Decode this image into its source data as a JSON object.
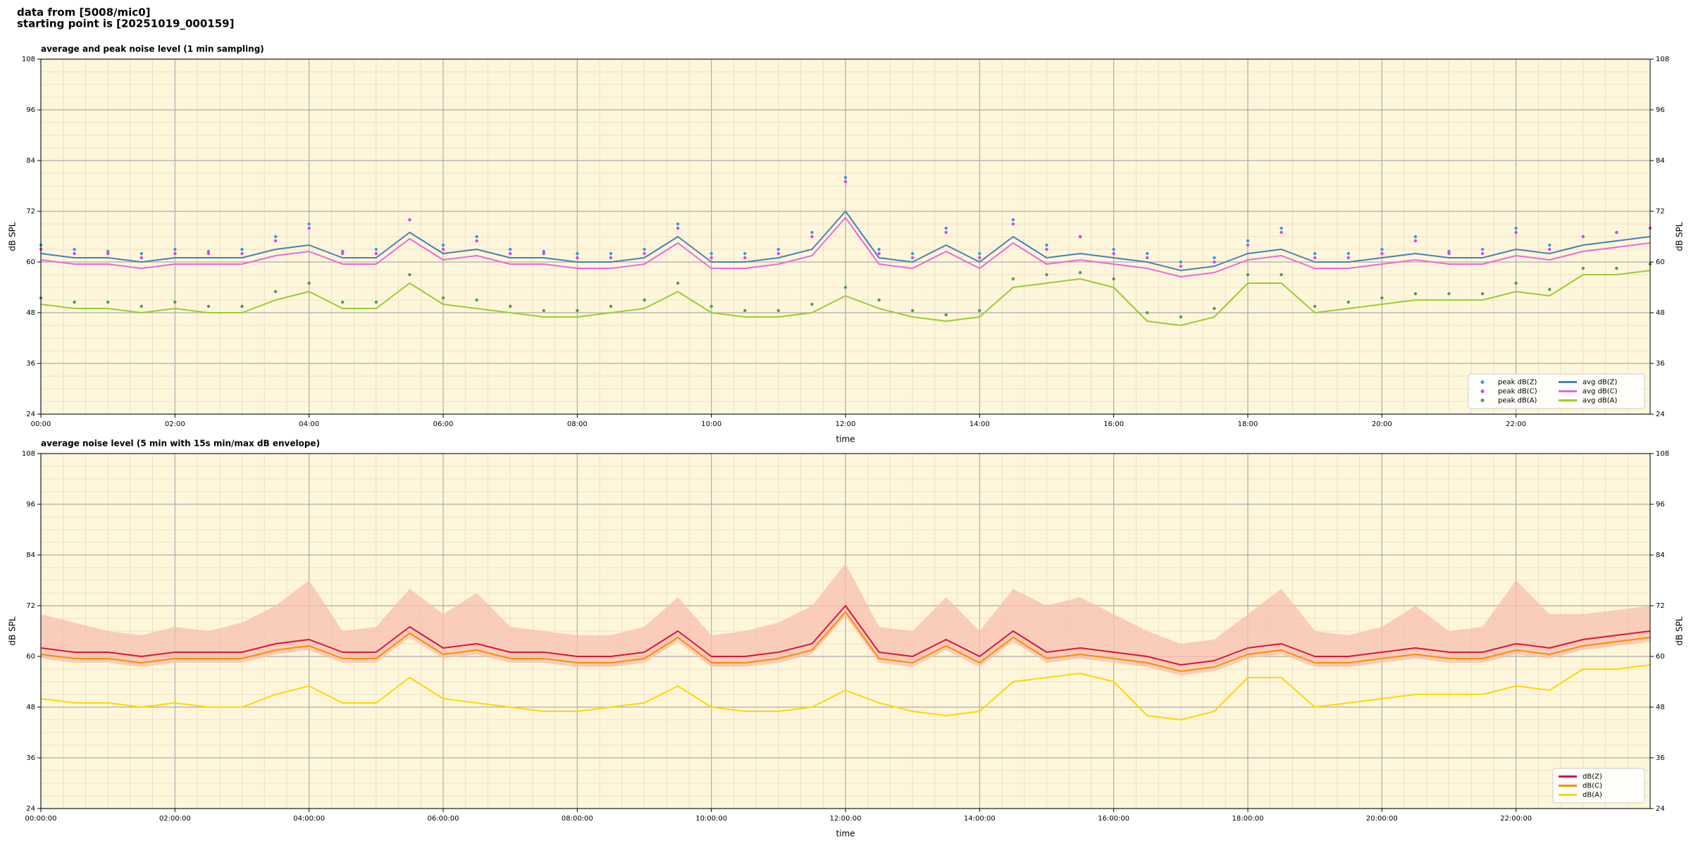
{
  "header": {
    "source": "data from [5008/mic0]",
    "start": "starting point is [20251019_000159]"
  },
  "chart_data": [
    {
      "type": "line",
      "title": "average and peak noise level (1 min sampling)",
      "xlabel": "time",
      "ylabel": "dB SPL",
      "x": [
        0,
        0.5,
        1,
        1.5,
        2,
        2.5,
        3,
        3.5,
        4,
        4.5,
        5,
        5.5,
        6,
        6.5,
        7,
        7.5,
        8,
        8.5,
        9,
        9.5,
        10,
        10.5,
        11,
        11.5,
        12,
        12.5,
        13,
        13.5,
        14,
        14.5,
        15,
        15.5,
        16,
        16.5,
        17,
        17.5,
        18,
        18.5,
        19,
        19.5,
        20,
        20.5,
        21,
        21.5,
        22,
        22.5,
        23,
        23.5,
        24
      ],
      "xlim": [
        0,
        24
      ],
      "xticks": [
        {
          "value": 0,
          "label": "00:00"
        },
        {
          "value": 2,
          "label": "02:00"
        },
        {
          "value": 4,
          "label": "04:00"
        },
        {
          "value": 6,
          "label": "06:00"
        },
        {
          "value": 8,
          "label": "08:00"
        },
        {
          "value": 10,
          "label": "10:00"
        },
        {
          "value": 12,
          "label": "12:00"
        },
        {
          "value": 14,
          "label": "14:00"
        },
        {
          "value": 16,
          "label": "16:00"
        },
        {
          "value": 18,
          "label": "18:00"
        },
        {
          "value": 20,
          "label": "20:00"
        },
        {
          "value": 22,
          "label": "22:00"
        }
      ],
      "ylim": [
        24,
        108
      ],
      "yticks": [
        24,
        36,
        48,
        60,
        72,
        84,
        96,
        108
      ],
      "grid": true,
      "minor_grid": true,
      "legend": "lower right",
      "legend_columns": 2,
      "series": [
        {
          "name": "peak dB(Z)",
          "kind": "scatter",
          "color": "#2b9fe0",
          "values": [
            64,
            63,
            62.5,
            62,
            63,
            62.5,
            63,
            66,
            69,
            62.5,
            63,
            70,
            64,
            66,
            63,
            62.5,
            62,
            62,
            63,
            69,
            62,
            62,
            63,
            67,
            80,
            63,
            62,
            68,
            62,
            70,
            64,
            66,
            63,
            62,
            60,
            61,
            65,
            68,
            62,
            62,
            63,
            66,
            62.5,
            63,
            68,
            64,
            66,
            67,
            68
          ]
        },
        {
          "name": "peak dB(C)",
          "kind": "scatter",
          "color": "#e040e0",
          "values": [
            63,
            62,
            62,
            61,
            62,
            62,
            62,
            65,
            68,
            62,
            62,
            70,
            63,
            65,
            62,
            62,
            61,
            61,
            62,
            68,
            61,
            61,
            62,
            66,
            79,
            62,
            61,
            67,
            61,
            69,
            63,
            66,
            62,
            61,
            59,
            60,
            64,
            67,
            61,
            61,
            62,
            65,
            62,
            62,
            67,
            63,
            66,
            67,
            68
          ]
        },
        {
          "name": "peak dB(A)",
          "kind": "scatter",
          "color": "#4f9a5a",
          "values": [
            51.5,
            50.5,
            50.5,
            49.5,
            50.5,
            49.5,
            49.5,
            53,
            55,
            50.5,
            50.5,
            57,
            51.5,
            51,
            49.5,
            48.5,
            48.5,
            49.5,
            51,
            55,
            49.5,
            48.5,
            48.5,
            50,
            54,
            51,
            48.5,
            47.5,
            48.5,
            56,
            57,
            57.5,
            56,
            48,
            47,
            49,
            57,
            57,
            49.5,
            50.5,
            51.5,
            52.5,
            52.5,
            52.5,
            55,
            53.5,
            58.5,
            58.5,
            59.5
          ]
        },
        {
          "name": "avg dB(Z)",
          "kind": "line",
          "color": "#4682b4",
          "values": [
            62,
            61,
            61,
            60,
            61,
            61,
            61,
            63,
            64,
            61,
            61,
            67,
            62,
            63,
            61,
            61,
            60,
            60,
            61,
            66,
            60,
            60,
            61,
            63,
            72,
            61,
            60,
            64,
            60,
            66,
            61,
            62,
            61,
            60,
            58,
            59,
            62,
            63,
            60,
            60,
            61,
            62,
            61,
            61,
            63,
            62,
            64,
            65,
            66
          ]
        },
        {
          "name": "avg dB(C)",
          "kind": "line",
          "color": "#ee66dd",
          "values": [
            60.5,
            59.5,
            59.5,
            58.5,
            59.5,
            59.5,
            59.5,
            61.5,
            62.5,
            59.5,
            59.5,
            65.5,
            60.5,
            61.5,
            59.5,
            59.5,
            58.5,
            58.5,
            59.5,
            64.5,
            58.5,
            58.5,
            59.5,
            61.5,
            70.5,
            59.5,
            58.5,
            62.5,
            58.5,
            64.5,
            59.5,
            60.5,
            59.5,
            58.5,
            56.5,
            57.5,
            60.5,
            61.5,
            58.5,
            58.5,
            59.5,
            60.5,
            59.5,
            59.5,
            61.5,
            60.5,
            62.5,
            63.5,
            64.5
          ]
        },
        {
          "name": "avg dB(A)",
          "kind": "line",
          "color": "#9acd32",
          "values": [
            50,
            49,
            49,
            48,
            49,
            48,
            48,
            51,
            53,
            49,
            49,
            55,
            50,
            49,
            48,
            47,
            47,
            48,
            49,
            53,
            48,
            47,
            47,
            48,
            52,
            49,
            47,
            46,
            47,
            54,
            55,
            56,
            54,
            46,
            45,
            47,
            55,
            55,
            48,
            49,
            50,
            51,
            51,
            51,
            53,
            52,
            57,
            57,
            58
          ]
        }
      ]
    },
    {
      "type": "line",
      "title": "average noise level (5 min with 15s min/max dB envelope)",
      "xlabel": "time",
      "ylabel": "dB SPL",
      "x": [
        0,
        0.5,
        1,
        1.5,
        2,
        2.5,
        3,
        3.5,
        4,
        4.5,
        5,
        5.5,
        6,
        6.5,
        7,
        7.5,
        8,
        8.5,
        9,
        9.5,
        10,
        10.5,
        11,
        11.5,
        12,
        12.5,
        13,
        13.5,
        14,
        14.5,
        15,
        15.5,
        16,
        16.5,
        17,
        17.5,
        18,
        18.5,
        19,
        19.5,
        20,
        20.5,
        21,
        21.5,
        22,
        22.5,
        23,
        23.5,
        24
      ],
      "xlim": [
        0,
        24
      ],
      "xticks": [
        {
          "value": 0,
          "label": "00:00:00"
        },
        {
          "value": 2,
          "label": "02:00:00"
        },
        {
          "value": 4,
          "label": "04:00:00"
        },
        {
          "value": 6,
          "label": "06:00:00"
        },
        {
          "value": 8,
          "label": "08:00:00"
        },
        {
          "value": 10,
          "label": "10:00:00"
        },
        {
          "value": 12,
          "label": "12:00:00"
        },
        {
          "value": 14,
          "label": "14:00:00"
        },
        {
          "value": 16,
          "label": "16:00:00"
        },
        {
          "value": 18,
          "label": "18:00:00"
        },
        {
          "value": 20,
          "label": "20:00:00"
        },
        {
          "value": 22,
          "label": "22:00:00"
        }
      ],
      "ylim": [
        24,
        108
      ],
      "yticks": [
        24,
        36,
        48,
        60,
        72,
        84,
        96,
        108
      ],
      "grid": true,
      "minor_grid": true,
      "legend": "lower right",
      "legend_columns": 1,
      "envelope": {
        "color": "#f7bfae",
        "high": [
          70,
          68,
          66,
          65,
          67,
          66,
          68,
          72,
          78,
          66,
          67,
          76,
          70,
          75,
          67,
          66,
          65,
          65,
          67,
          74,
          65,
          66,
          68,
          72,
          82,
          67,
          66,
          74,
          66,
          76,
          72,
          74,
          70,
          66,
          63,
          64,
          70,
          76,
          66,
          65,
          67,
          72,
          66,
          67,
          78,
          70,
          70,
          71,
          72
        ],
        "low": [
          59.5,
          58.5,
          58.5,
          57.5,
          58.5,
          58.5,
          58.5,
          60.5,
          61.5,
          58.5,
          58.5,
          64.5,
          59.5,
          60.5,
          58.5,
          58.5,
          57.5,
          57.5,
          58.5,
          63.5,
          57.5,
          57.5,
          58.5,
          60.5,
          69.5,
          58.5,
          57.5,
          61.5,
          57.5,
          63.5,
          58.5,
          59.5,
          58.5,
          57.5,
          55.5,
          56.5,
          59.5,
          60.5,
          57.5,
          57.5,
          58.5,
          59.5,
          58.5,
          58.5,
          60.5,
          59.5,
          61.5,
          62.5,
          63.5
        ]
      },
      "series": [
        {
          "name": "dB(Z)",
          "kind": "line",
          "color": "#dc143c",
          "values": [
            62,
            61,
            61,
            60,
            61,
            61,
            61,
            63,
            64,
            61,
            61,
            67,
            62,
            63,
            61,
            61,
            60,
            60,
            61,
            66,
            60,
            60,
            61,
            63,
            72,
            61,
            60,
            64,
            60,
            66,
            61,
            62,
            61,
            60,
            58,
            59,
            62,
            63,
            60,
            60,
            61,
            62,
            61,
            61,
            63,
            62,
            64,
            65,
            66
          ]
        },
        {
          "name": "dB(C)",
          "kind": "line",
          "color": "#ff8c00",
          "values": [
            60.5,
            59.5,
            59.5,
            58.5,
            59.5,
            59.5,
            59.5,
            61.5,
            62.5,
            59.5,
            59.5,
            65.5,
            60.5,
            61.5,
            59.5,
            59.5,
            58.5,
            58.5,
            59.5,
            64.5,
            58.5,
            58.5,
            59.5,
            61.5,
            70.5,
            59.5,
            58.5,
            62.5,
            58.5,
            64.5,
            59.5,
            60.5,
            59.5,
            58.5,
            56.5,
            57.5,
            60.5,
            61.5,
            58.5,
            58.5,
            59.5,
            60.5,
            59.5,
            59.5,
            61.5,
            60.5,
            62.5,
            63.5,
            64.5
          ]
        },
        {
          "name": "dB(A)",
          "kind": "line",
          "color": "#ffd700",
          "values": [
            50,
            49,
            49,
            48,
            49,
            48,
            48,
            51,
            53,
            49,
            49,
            55,
            50,
            49,
            48,
            47,
            47,
            48,
            49,
            53,
            48,
            47,
            47,
            48,
            52,
            49,
            47,
            46,
            47,
            54,
            55,
            56,
            54,
            46,
            45,
            47,
            55,
            55,
            48,
            49,
            50,
            51,
            51,
            51,
            53,
            52,
            57,
            57,
            58
          ]
        }
      ]
    }
  ]
}
